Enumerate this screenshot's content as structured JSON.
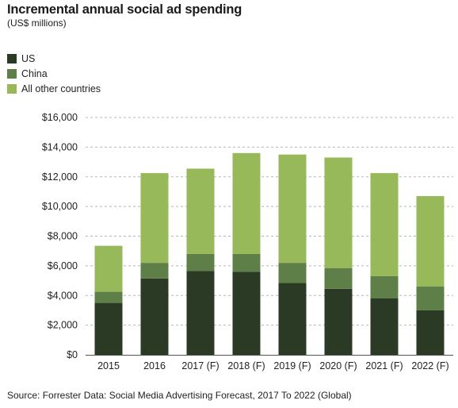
{
  "title": "Incremental annual social ad spending",
  "subtitle": "(US$ millions)",
  "source": "Source: Forrester Data: Social Media Advertising Forecast, 2017 To 2022 (Global)",
  "chart_data": {
    "type": "bar",
    "stacked": true,
    "categories": [
      "2015",
      "2016",
      "2017 (F)",
      "2018 (F)",
      "2019 (F)",
      "2020 (F)",
      "2021 (F)",
      "2022 (F)"
    ],
    "series": [
      {
        "name": "US",
        "color": "#2b3a24",
        "values": [
          3500,
          5150,
          5650,
          5600,
          4850,
          4450,
          3800,
          3000
        ]
      },
      {
        "name": "China",
        "color": "#5e7f47",
        "values": [
          750,
          1050,
          1150,
          1200,
          1350,
          1400,
          1500,
          1600
        ]
      },
      {
        "name": "All other countries",
        "color": "#97b95a",
        "values": [
          3100,
          6050,
          5750,
          6800,
          7300,
          7450,
          6950,
          6100
        ]
      }
    ],
    "y_ticks": [
      "$0",
      "$2,000",
      "$4,000",
      "$6,000",
      "$8,000",
      "$10,000",
      "$12,000",
      "$14,000",
      "$16,000"
    ],
    "ylim": [
      0,
      16000
    ],
    "y_step": 2000,
    "grid": "dashed-horizontal",
    "legend": "top-left"
  }
}
